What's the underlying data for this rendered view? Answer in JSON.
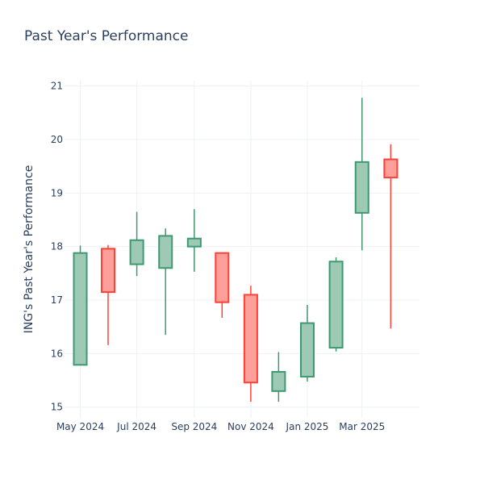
{
  "chart_data": {
    "type": "candlestick",
    "title": "Past Year's Performance",
    "xlabel": "",
    "ylabel": "ING's Past Year's Performance",
    "ylim": [
      14.8,
      21.1
    ],
    "xlim": [
      "2024-04-14",
      "2025-05-02"
    ],
    "y_ticks": [
      15,
      16,
      17,
      18,
      19,
      20,
      21
    ],
    "x_ticks": [
      {
        "date": "2024-05-01",
        "label": "May 2024"
      },
      {
        "date": "2024-07-01",
        "label": "Jul 2024"
      },
      {
        "date": "2024-09-01",
        "label": "Sep 2024"
      },
      {
        "date": "2024-11-01",
        "label": "Nov 2024"
      },
      {
        "date": "2025-01-01",
        "label": "Jan 2025"
      },
      {
        "date": "2025-03-01",
        "label": "Mar 2025"
      }
    ],
    "grid": true,
    "legend": false,
    "colors": {
      "increasing_line": "#3d9970",
      "increasing_fill": "#9ecab5",
      "decreasing_line": "#ff4136",
      "decreasing_fill": "#ff9f9a"
    },
    "candles": [
      {
        "date": "2024-05-01",
        "open": 15.79,
        "high": 18.02,
        "low": 15.79,
        "close": 17.88
      },
      {
        "date": "2024-05-31",
        "open": 17.96,
        "high": 18.03,
        "low": 16.16,
        "close": 17.15
      },
      {
        "date": "2024-07-01",
        "open": 17.67,
        "high": 18.65,
        "low": 17.45,
        "close": 18.12
      },
      {
        "date": "2024-08-01",
        "open": 17.6,
        "high": 18.34,
        "low": 16.35,
        "close": 18.2
      },
      {
        "date": "2024-09-01",
        "open": 18.0,
        "high": 18.7,
        "low": 17.53,
        "close": 18.15
      },
      {
        "date": "2024-10-01",
        "open": 17.88,
        "high": 17.88,
        "low": 16.67,
        "close": 16.96
      },
      {
        "date": "2024-11-01",
        "open": 17.1,
        "high": 17.27,
        "low": 15.1,
        "close": 15.46
      },
      {
        "date": "2024-12-01",
        "open": 15.3,
        "high": 16.03,
        "low": 15.1,
        "close": 15.66
      },
      {
        "date": "2025-01-01",
        "open": 15.57,
        "high": 16.91,
        "low": 15.48,
        "close": 16.57
      },
      {
        "date": "2025-02-01",
        "open": 16.11,
        "high": 17.8,
        "low": 16.04,
        "close": 17.72
      },
      {
        "date": "2025-03-01",
        "open": 18.63,
        "high": 20.78,
        "low": 17.93,
        "close": 19.58
      },
      {
        "date": "2025-04-01",
        "open": 19.63,
        "high": 19.91,
        "low": 16.47,
        "close": 19.29
      }
    ]
  }
}
